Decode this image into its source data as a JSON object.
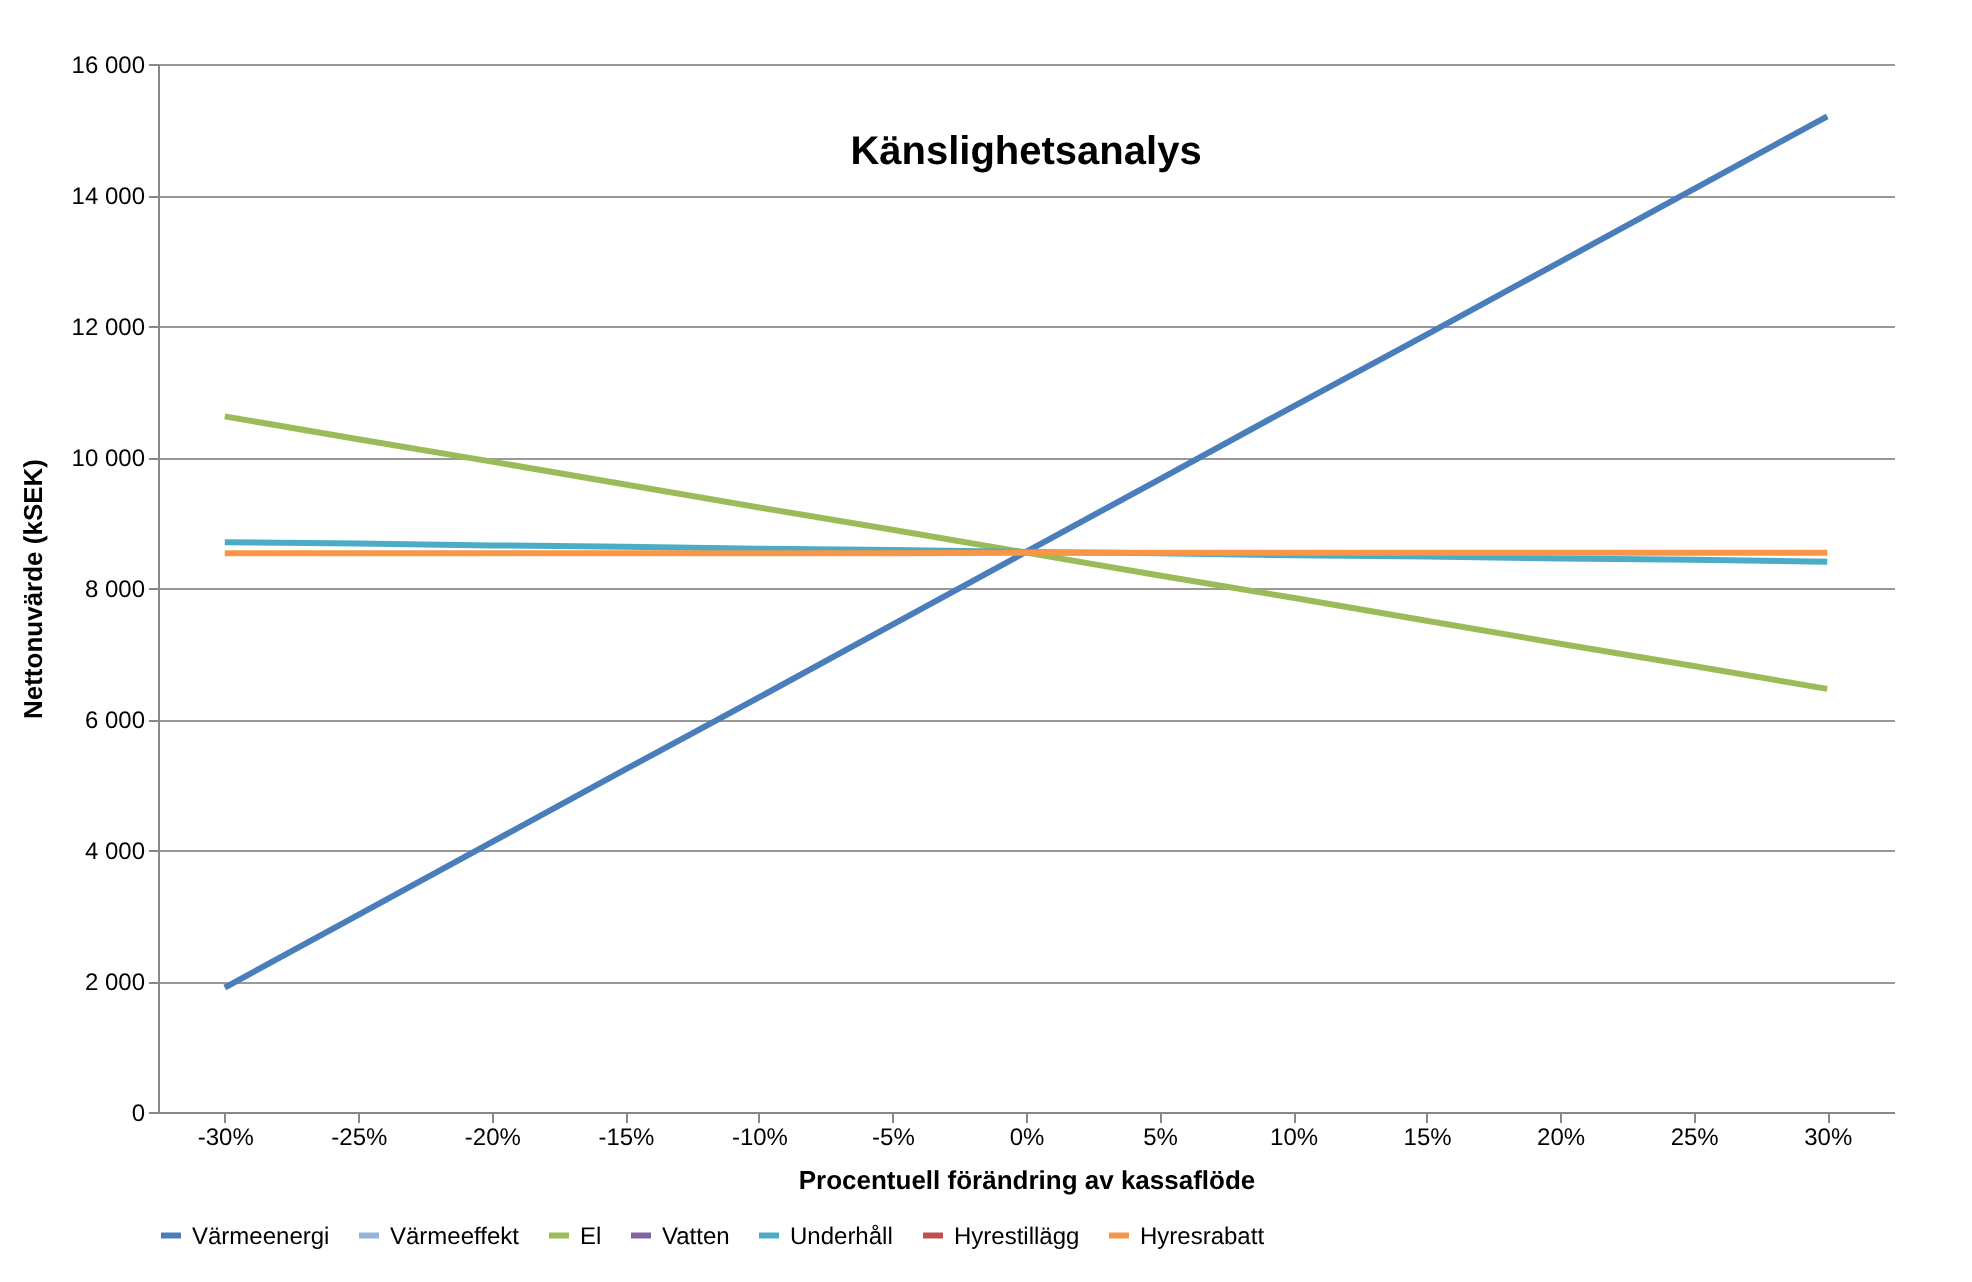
{
  "chart_data": {
    "type": "line",
    "title": "Känslighetsanalys",
    "xlabel": "Procentuell förändring av kassaflöde",
    "ylabel": "Nettonuvärde (kSEK)",
    "categories": [
      "-30%",
      "-25%",
      "-20%",
      "-15%",
      "-10%",
      "-5%",
      "0%",
      "5%",
      "10%",
      "15%",
      "20%",
      "25%",
      "30%"
    ],
    "series": [
      {
        "name": "Värmeenergi",
        "color": "#4a7ebb",
        "values": [
          1900,
          3010,
          4120,
          5230,
          6330,
          7440,
          8550,
          9660,
          10770,
          11870,
          12980,
          14090,
          15200
        ]
      },
      {
        "name": "Värmeeffekt",
        "color": "#95b3d7",
        "values": [
          null,
          null,
          null,
          null,
          null,
          null,
          null,
          null,
          null,
          null,
          null,
          null,
          null
        ]
      },
      {
        "name": "El",
        "color": "#9bbb59",
        "values": [
          10620,
          10270,
          9930,
          9580,
          9230,
          8890,
          8540,
          8190,
          7850,
          7500,
          7150,
          6810,
          6460
        ]
      },
      {
        "name": "Vatten",
        "color": "#8064a2",
        "values": [
          null,
          null,
          null,
          null,
          null,
          null,
          null,
          null,
          null,
          null,
          null,
          null,
          null
        ]
      },
      {
        "name": "Underhåll",
        "color": "#4bacc6",
        "values": [
          8700,
          8680,
          8650,
          8630,
          8600,
          8580,
          8550,
          8530,
          8500,
          8480,
          8450,
          8430,
          8400
        ]
      },
      {
        "name": "Hyrestillägg",
        "color": "#c0504d",
        "values": [
          null,
          null,
          null,
          null,
          null,
          null,
          null,
          null,
          null,
          null,
          null,
          null,
          null
        ]
      },
      {
        "name": "Hyresrabatt",
        "color": "#f79646",
        "values": [
          8530,
          8530,
          8530,
          8530,
          8530,
          8530,
          8540,
          8540,
          8540,
          8540,
          8540,
          8540,
          8540
        ]
      }
    ],
    "ylim": [
      0,
      16000
    ],
    "yticks": [
      {
        "value": 0,
        "label": "0"
      },
      {
        "value": 2000,
        "label": "2 000"
      },
      {
        "value": 4000,
        "label": "4 000"
      },
      {
        "value": 6000,
        "label": "6 000"
      },
      {
        "value": 8000,
        "label": "8 000"
      },
      {
        "value": 10000,
        "label": "10 000"
      },
      {
        "value": 12000,
        "label": "12 000"
      },
      {
        "value": 14000,
        "label": "14 000"
      },
      {
        "value": 16000,
        "label": "16 000"
      }
    ],
    "grid": "y",
    "legend": "bottom",
    "line_style": "solid"
  }
}
